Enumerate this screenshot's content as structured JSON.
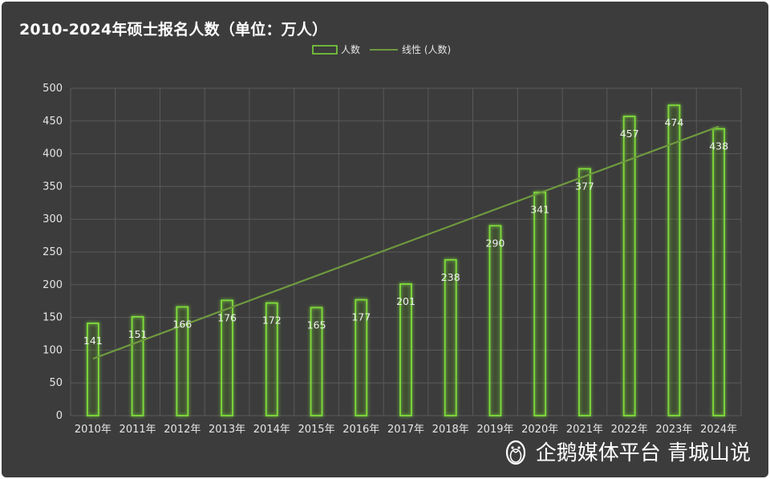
{
  "colors": {
    "background": "#3c3c3c",
    "bar_stroke": "#7fdc3a",
    "bar_glow": "#5fae2a",
    "trend_line": "#6f9a3f",
    "grid": "#5a5a5a",
    "text": "#e6e6e6"
  },
  "watermark": {
    "text": "企鹅媒体平台 青城山说",
    "icon": "penguin-icon"
  },
  "chart_data": {
    "type": "bar",
    "title": "2010-2024年硕士报名人数（单位：万人）",
    "categories": [
      "2010年",
      "2011年",
      "2012年",
      "2013年",
      "2014年",
      "2015年",
      "2016年",
      "2017年",
      "2018年",
      "2019年",
      "2020年",
      "2021年",
      "2022年",
      "2023年",
      "2024年"
    ],
    "series": [
      {
        "name": "人数",
        "values": [
          141,
          151,
          166,
          176,
          172,
          165,
          177,
          201,
          238,
          290,
          341,
          377,
          457,
          474,
          438
        ]
      }
    ],
    "trendline": {
      "name": "线性 (人数)",
      "type": "linear",
      "of_series": "人数"
    },
    "data_labels": true,
    "ylim": [
      0,
      500
    ],
    "yticks": [
      0,
      50,
      100,
      150,
      200,
      250,
      300,
      350,
      400,
      450,
      500
    ],
    "xlabel": "",
    "ylabel": "",
    "grid": true,
    "legend": "top-center"
  }
}
